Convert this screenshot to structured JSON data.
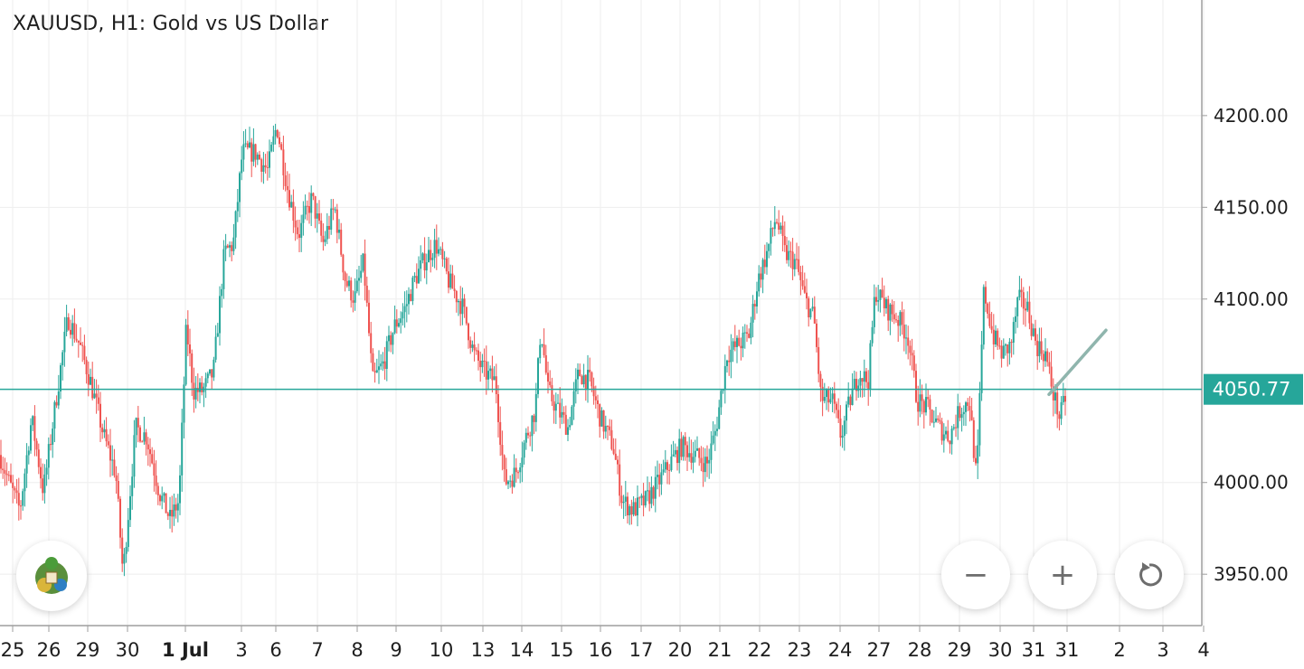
{
  "chart_title": "XAUUSD, H1: Gold vs US Dollar",
  "colors": {
    "up": "#26a69a",
    "down": "#ef5350",
    "grid": "#eeeeee",
    "axis": "#9e9e9e",
    "price_line": "#26a69a",
    "price_label_bg": "#26a69a",
    "trend_arrow": "#8fb5ad"
  },
  "controls": {
    "zoom_out": "−",
    "zoom_in": "+",
    "reset_icon": "rotate-ccw-icon",
    "logo_icon": "metatrader-logo-icon"
  },
  "chart_data": {
    "type": "candlestick",
    "timeframe": "H1",
    "symbol": "XAUUSD",
    "current_price": 4050.77,
    "current_price_label": "4050.77",
    "ylim": [
      3922,
      4263
    ],
    "y_ticks": [
      {
        "value": 4200,
        "label": "4200.00"
      },
      {
        "value": 4150,
        "label": "4150.00"
      },
      {
        "value": 4100,
        "label": "4100.00"
      },
      {
        "value": 4000,
        "label": "4000.00"
      },
      {
        "value": 3950,
        "label": "3950.00"
      }
    ],
    "x_ticks": [
      "25",
      "26",
      "29",
      "30",
      "1 Jul",
      "3",
      "6",
      "7",
      "8",
      "9",
      "10",
      "13",
      "14",
      "15",
      "16",
      "17",
      "20",
      "21",
      "22",
      "23",
      "24",
      "27",
      "28",
      "29",
      "30",
      "31",
      "31",
      "2",
      "3",
      "4"
    ],
    "x_bold": [
      "1 Jul"
    ],
    "path": [
      [
        0,
        4015
      ],
      [
        10,
        4000
      ],
      [
        22,
        3985
      ],
      [
        35,
        4035
      ],
      [
        48,
        3995
      ],
      [
        62,
        4045
      ],
      [
        75,
        4090
      ],
      [
        88,
        4075
      ],
      [
        100,
        4055
      ],
      [
        115,
        4025
      ],
      [
        128,
        4005
      ],
      [
        136,
        3950
      ],
      [
        150,
        4030
      ],
      [
        162,
        4025
      ],
      [
        176,
        3995
      ],
      [
        188,
        3980
      ],
      [
        198,
        3990
      ],
      [
        206,
        4085
      ],
      [
        214,
        4050
      ],
      [
        224,
        4050
      ],
      [
        236,
        4060
      ],
      [
        248,
        4125
      ],
      [
        258,
        4130
      ],
      [
        268,
        4180
      ],
      [
        282,
        4180
      ],
      [
        296,
        4170
      ],
      [
        306,
        4195
      ],
      [
        318,
        4160
      ],
      [
        330,
        4135
      ],
      [
        345,
        4155
      ],
      [
        357,
        4130
      ],
      [
        370,
        4150
      ],
      [
        382,
        4110
      ],
      [
        392,
        4100
      ],
      [
        402,
        4120
      ],
      [
        412,
        4055
      ],
      [
        424,
        4065
      ],
      [
        436,
        4085
      ],
      [
        448,
        4095
      ],
      [
        458,
        4110
      ],
      [
        468,
        4120
      ],
      [
        482,
        4130
      ],
      [
        496,
        4110
      ],
      [
        512,
        4095
      ],
      [
        524,
        4070
      ],
      [
        536,
        4060
      ],
      [
        548,
        4055
      ],
      [
        558,
        4000
      ],
      [
        570,
        4005
      ],
      [
        582,
        4025
      ],
      [
        592,
        4040
      ],
      [
        598,
        4085
      ],
      [
        606,
        4050
      ],
      [
        616,
        4040
      ],
      [
        628,
        4030
      ],
      [
        640,
        4060
      ],
      [
        652,
        4055
      ],
      [
        664,
        4035
      ],
      [
        678,
        4020
      ],
      [
        688,
        3990
      ],
      [
        700,
        3985
      ],
      [
        714,
        3990
      ],
      [
        728,
        4000
      ],
      [
        740,
        4010
      ],
      [
        754,
        4020
      ],
      [
        768,
        4015
      ],
      [
        782,
        4010
      ],
      [
        792,
        4030
      ],
      [
        804,
        4070
      ],
      [
        816,
        4075
      ],
      [
        828,
        4080
      ],
      [
        838,
        4110
      ],
      [
        848,
        4125
      ],
      [
        858,
        4145
      ],
      [
        868,
        4125
      ],
      [
        880,
        4120
      ],
      [
        890,
        4100
      ],
      [
        900,
        4090
      ],
      [
        908,
        4045
      ],
      [
        920,
        4045
      ],
      [
        930,
        4025
      ],
      [
        940,
        4045
      ],
      [
        950,
        4060
      ],
      [
        960,
        4055
      ],
      [
        968,
        4105
      ],
      [
        980,
        4095
      ],
      [
        992,
        4090
      ],
      [
        1004,
        4080
      ],
      [
        1014,
        4045
      ],
      [
        1026,
        4040
      ],
      [
        1038,
        4030
      ],
      [
        1050,
        4025
      ],
      [
        1062,
        4040
      ],
      [
        1072,
        4045
      ],
      [
        1080,
        4000
      ],
      [
        1088,
        4105
      ],
      [
        1098,
        4080
      ],
      [
        1108,
        4070
      ],
      [
        1118,
        4075
      ],
      [
        1126,
        4100
      ],
      [
        1136,
        4095
      ],
      [
        1146,
        4075
      ],
      [
        1156,
        4070
      ],
      [
        1164,
        4050
      ],
      [
        1172,
        4035
      ],
      [
        1180,
        4050
      ]
    ]
  }
}
